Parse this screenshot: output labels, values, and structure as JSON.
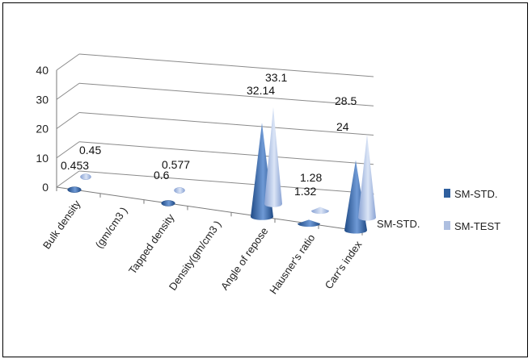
{
  "chart_data": {
    "type": "3d-cone-column",
    "categories": [
      "Bulk  density",
      "(gm/cm3 )",
      "Tapped density",
      "Density(gm/cm3 )",
      "Angle of repose",
      "Hausner's ratio",
      "Carr's index"
    ],
    "series": [
      {
        "name": "SM-STD.",
        "color": "#2f5f9e",
        "values": [
          0.453,
          null,
          0.6,
          null,
          32.14,
          1.32,
          24
        ]
      },
      {
        "name": "SM-TEST",
        "color": "#aebfe0",
        "values": [
          0.45,
          null,
          0.577,
          null,
          33.1,
          1.28,
          28.5
        ]
      }
    ],
    "data_labels": {
      "SM-STD.": [
        "0.453",
        "",
        "0.6",
        "",
        "32.14",
        "1.32",
        "24"
      ],
      "SM-TEST": [
        "0.45",
        "",
        "0.577",
        "",
        "33.1",
        "1.28",
        "28.5"
      ]
    },
    "depth_axis_label": "SM-STD.",
    "y_ticks": [
      0,
      10,
      20,
      30,
      40
    ],
    "ylim": [
      0,
      40
    ],
    "legend": [
      "SM-STD.",
      "SM-TEST"
    ],
    "legend_position": "right"
  }
}
